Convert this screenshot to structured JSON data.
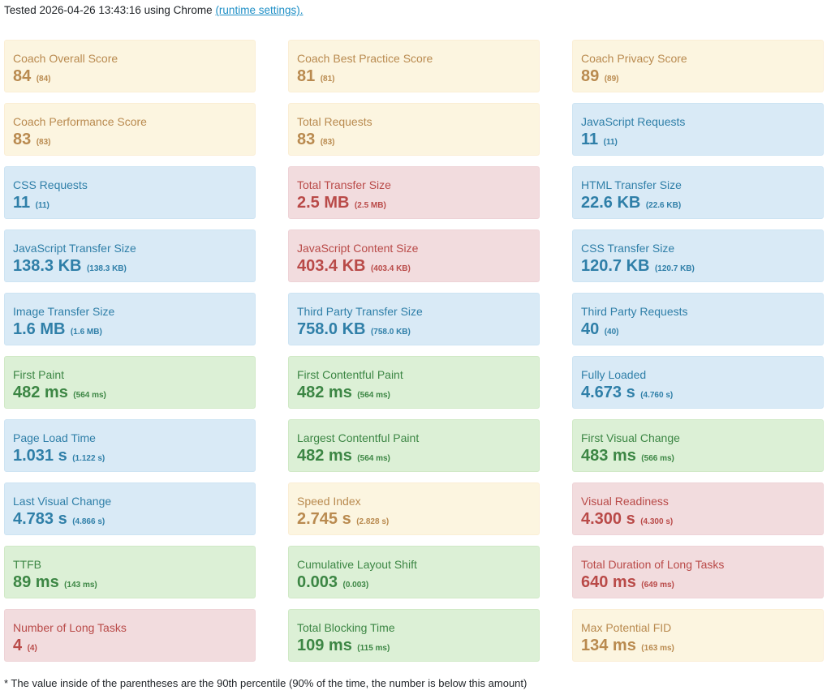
{
  "header": {
    "prefix": "Tested 2026-04-26 13:43:16 using Chrome ",
    "link": "(runtime settings)."
  },
  "colors": {
    "warn": "#b98a4f",
    "info": "#2f7fa8",
    "danger": "#b94a48",
    "ok": "#3c8644"
  },
  "metrics": [
    {
      "label": "Coach Overall Score",
      "value": "84",
      "p90": "(84)",
      "status": "warn"
    },
    {
      "label": "Coach Best Practice Score",
      "value": "81",
      "p90": "(81)",
      "status": "warn"
    },
    {
      "label": "Coach Privacy Score",
      "value": "89",
      "p90": "(89)",
      "status": "warn"
    },
    {
      "label": "Coach Performance Score",
      "value": "83",
      "p90": "(83)",
      "status": "warn"
    },
    {
      "label": "Total Requests",
      "value": "83",
      "p90": "(83)",
      "status": "warn"
    },
    {
      "label": "JavaScript Requests",
      "value": "11",
      "p90": "(11)",
      "status": "info"
    },
    {
      "label": "CSS Requests",
      "value": "11",
      "p90": "(11)",
      "status": "info"
    },
    {
      "label": "Total Transfer Size",
      "value": "2.5 MB",
      "p90": "(2.5 MB)",
      "status": "danger"
    },
    {
      "label": "HTML Transfer Size",
      "value": "22.6 KB",
      "p90": "(22.6 KB)",
      "status": "info"
    },
    {
      "label": "JavaScript Transfer Size",
      "value": "138.3 KB",
      "p90": "(138.3 KB)",
      "status": "info"
    },
    {
      "label": "JavaScript Content Size",
      "value": "403.4 KB",
      "p90": "(403.4 KB)",
      "status": "danger"
    },
    {
      "label": "CSS Transfer Size",
      "value": "120.7 KB",
      "p90": "(120.7 KB)",
      "status": "info"
    },
    {
      "label": "Image Transfer Size",
      "value": "1.6 MB",
      "p90": "(1.6 MB)",
      "status": "info"
    },
    {
      "label": "Third Party Transfer Size",
      "value": "758.0 KB",
      "p90": "(758.0 KB)",
      "status": "info"
    },
    {
      "label": "Third Party Requests",
      "value": "40",
      "p90": "(40)",
      "status": "info"
    },
    {
      "label": "First Paint",
      "value": "482 ms",
      "p90": "(564 ms)",
      "status": "ok"
    },
    {
      "label": "First Contentful Paint",
      "value": "482 ms",
      "p90": "(564 ms)",
      "status": "ok"
    },
    {
      "label": "Fully Loaded",
      "value": "4.673 s",
      "p90": "(4.760 s)",
      "status": "info"
    },
    {
      "label": "Page Load Time",
      "value": "1.031 s",
      "p90": "(1.122 s)",
      "status": "info"
    },
    {
      "label": "Largest Contentful Paint",
      "value": "482 ms",
      "p90": "(564 ms)",
      "status": "ok"
    },
    {
      "label": "First Visual Change",
      "value": "483 ms",
      "p90": "(566 ms)",
      "status": "ok"
    },
    {
      "label": "Last Visual Change",
      "value": "4.783 s",
      "p90": "(4.866 s)",
      "status": "info"
    },
    {
      "label": "Speed Index",
      "value": "2.745 s",
      "p90": "(2.828 s)",
      "status": "warn"
    },
    {
      "label": "Visual Readiness",
      "value": "4.300 s",
      "p90": "(4.300 s)",
      "status": "danger"
    },
    {
      "label": "TTFB",
      "value": "89 ms",
      "p90": "(143 ms)",
      "status": "ok"
    },
    {
      "label": "Cumulative Layout Shift",
      "value": "0.003",
      "p90": "(0.003)",
      "status": "ok"
    },
    {
      "label": "Total Duration of Long Tasks",
      "value": "640 ms",
      "p90": "(649 ms)",
      "status": "danger"
    },
    {
      "label": "Number of Long Tasks",
      "value": "4",
      "p90": "(4)",
      "status": "danger"
    },
    {
      "label": "Total Blocking Time",
      "value": "109 ms",
      "p90": "(115 ms)",
      "status": "ok"
    },
    {
      "label": "Max Potential FID",
      "value": "134 ms",
      "p90": "(163 ms)",
      "status": "warn"
    }
  ],
  "footnote": "* The value inside of the parentheses are the 90th percentile (90% of the time, the number is below this amount)"
}
